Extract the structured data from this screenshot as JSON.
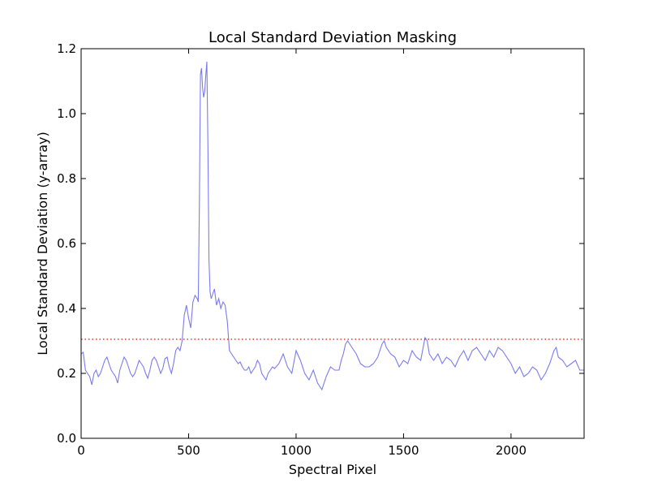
{
  "chart_data": {
    "type": "line",
    "title": "Local Standard Deviation Masking",
    "xlabel": "Spectral Pixel",
    "ylabel": "Local Standard Deviation (y-array)",
    "xlim": [
      0,
      2340
    ],
    "ylim": [
      0,
      1.2
    ],
    "x_ticks": [
      "0",
      "500",
      "1000",
      "1500",
      "2000"
    ],
    "y_ticks": [
      "0.0",
      "0.2",
      "0.4",
      "0.6",
      "0.8",
      "1.0",
      "1.2"
    ],
    "grid": false,
    "legend": "none",
    "series": [
      {
        "color": "#7b7bf0",
        "style": "solid",
        "x": [
          0,
          10,
          20,
          30,
          40,
          50,
          60,
          70,
          80,
          90,
          100,
          110,
          120,
          130,
          140,
          150,
          160,
          170,
          180,
          190,
          200,
          210,
          220,
          230,
          240,
          250,
          260,
          270,
          280,
          290,
          300,
          310,
          320,
          330,
          340,
          350,
          360,
          370,
          380,
          390,
          400,
          410,
          420,
          430,
          440,
          450,
          460,
          470,
          480,
          490,
          500,
          510,
          520,
          530,
          540,
          545,
          550,
          555,
          560,
          565,
          570,
          575,
          580,
          585,
          590,
          595,
          600,
          605,
          610,
          620,
          630,
          640,
          650,
          660,
          670,
          680,
          690,
          700,
          710,
          720,
          730,
          740,
          750,
          760,
          770,
          780,
          790,
          800,
          810,
          820,
          830,
          840,
          850,
          860,
          870,
          880,
          890,
          900,
          920,
          940,
          960,
          980,
          1000,
          1020,
          1040,
          1060,
          1080,
          1100,
          1120,
          1140,
          1160,
          1180,
          1200,
          1210,
          1220,
          1230,
          1240,
          1260,
          1280,
          1300,
          1320,
          1340,
          1360,
          1380,
          1400,
          1410,
          1420,
          1440,
          1460,
          1480,
          1500,
          1520,
          1540,
          1560,
          1580,
          1600,
          1610,
          1620,
          1640,
          1660,
          1680,
          1700,
          1720,
          1740,
          1760,
          1780,
          1800,
          1820,
          1840,
          1860,
          1880,
          1900,
          1920,
          1940,
          1960,
          1980,
          2000,
          2020,
          2040,
          2060,
          2080,
          2100,
          2120,
          2140,
          2160,
          2180,
          2200,
          2210,
          2220,
          2240,
          2260,
          2280,
          2300,
          2320,
          2340
        ],
        "y": [
          0.26,
          0.265,
          0.21,
          0.2,
          0.19,
          0.165,
          0.2,
          0.21,
          0.19,
          0.2,
          0.22,
          0.24,
          0.25,
          0.23,
          0.21,
          0.2,
          0.19,
          0.17,
          0.21,
          0.23,
          0.25,
          0.24,
          0.22,
          0.2,
          0.19,
          0.2,
          0.22,
          0.24,
          0.23,
          0.22,
          0.2,
          0.185,
          0.21,
          0.24,
          0.25,
          0.24,
          0.22,
          0.2,
          0.215,
          0.245,
          0.25,
          0.22,
          0.2,
          0.23,
          0.27,
          0.28,
          0.27,
          0.3,
          0.38,
          0.41,
          0.37,
          0.34,
          0.42,
          0.44,
          0.43,
          0.42,
          0.7,
          1.12,
          1.14,
          1.08,
          1.05,
          1.07,
          1.12,
          1.16,
          0.9,
          0.55,
          0.45,
          0.43,
          0.44,
          0.46,
          0.41,
          0.43,
          0.4,
          0.42,
          0.41,
          0.36,
          0.27,
          0.26,
          0.25,
          0.24,
          0.23,
          0.235,
          0.22,
          0.21,
          0.21,
          0.22,
          0.2,
          0.21,
          0.22,
          0.24,
          0.23,
          0.2,
          0.19,
          0.18,
          0.2,
          0.21,
          0.22,
          0.215,
          0.23,
          0.26,
          0.22,
          0.2,
          0.27,
          0.24,
          0.2,
          0.18,
          0.21,
          0.17,
          0.15,
          0.19,
          0.22,
          0.21,
          0.21,
          0.24,
          0.26,
          0.29,
          0.3,
          0.28,
          0.26,
          0.23,
          0.22,
          0.22,
          0.23,
          0.25,
          0.29,
          0.3,
          0.28,
          0.26,
          0.25,
          0.22,
          0.24,
          0.23,
          0.27,
          0.25,
          0.24,
          0.31,
          0.3,
          0.26,
          0.24,
          0.26,
          0.23,
          0.25,
          0.24,
          0.22,
          0.25,
          0.27,
          0.24,
          0.27,
          0.28,
          0.26,
          0.24,
          0.27,
          0.25,
          0.28,
          0.27,
          0.25,
          0.23,
          0.2,
          0.22,
          0.19,
          0.2,
          0.22,
          0.21,
          0.18,
          0.2,
          0.23,
          0.27,
          0.28,
          0.25,
          0.24,
          0.22,
          0.23,
          0.24,
          0.21,
          0.21
        ]
      },
      {
        "color": "#ff0000",
        "style": "dotted",
        "x": [
          0,
          2340
        ],
        "y": [
          0.305,
          0.305
        ]
      }
    ]
  }
}
